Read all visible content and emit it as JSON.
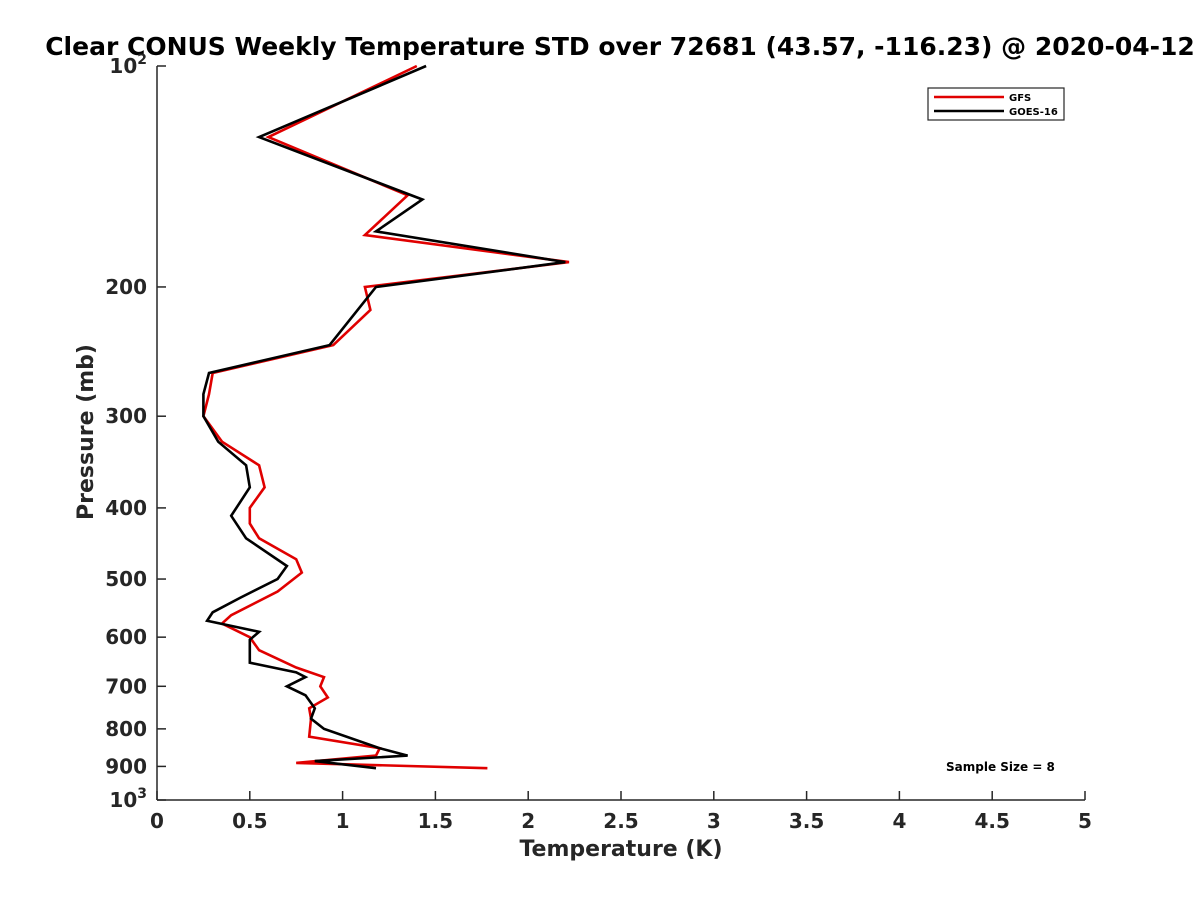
{
  "chart_data": {
    "type": "line",
    "title": "Clear CONUS Weekly Temperature STD over 72681 (43.57, -116.23) @ 2020-04-12",
    "xlabel": "Temperature (K)",
    "ylabel": "Pressure (mb)",
    "xlim": [
      0,
      5
    ],
    "ylim": [
      100,
      1000
    ],
    "yscale": "log",
    "y_reversed": true,
    "x_ticks": [
      "0",
      "0.5",
      "1",
      "1.5",
      "2",
      "2.5",
      "3",
      "3.5",
      "4",
      "4.5",
      "5"
    ],
    "y_ticks": [
      {
        "value": 100,
        "label": "10",
        "sup": "2"
      },
      {
        "value": 200,
        "label": "200",
        "sup": ""
      },
      {
        "value": 300,
        "label": "300",
        "sup": ""
      },
      {
        "value": 400,
        "label": "400",
        "sup": ""
      },
      {
        "value": 500,
        "label": "500",
        "sup": ""
      },
      {
        "value": 600,
        "label": "600",
        "sup": ""
      },
      {
        "value": 700,
        "label": "700",
        "sup": ""
      },
      {
        "value": 800,
        "label": "800",
        "sup": ""
      },
      {
        "value": 900,
        "label": "900",
        "sup": ""
      },
      {
        "value": 1000,
        "label": "10",
        "sup": "3"
      }
    ],
    "legend_position": "top-right",
    "annotation": "Sample Size = 8",
    "grid": false,
    "series": [
      {
        "name": "GFS",
        "color": "#e00000",
        "points": [
          [
            1.4,
            100
          ],
          [
            0.6,
            125
          ],
          [
            1.35,
            150
          ],
          [
            1.12,
            170
          ],
          [
            2.22,
            185
          ],
          [
            1.12,
            200
          ],
          [
            1.15,
            215
          ],
          [
            0.95,
            240
          ],
          [
            0.3,
            262
          ],
          [
            0.28,
            280
          ],
          [
            0.25,
            300
          ],
          [
            0.35,
            325
          ],
          [
            0.55,
            350
          ],
          [
            0.58,
            375
          ],
          [
            0.5,
            400
          ],
          [
            0.5,
            420
          ],
          [
            0.55,
            440
          ],
          [
            0.75,
            470
          ],
          [
            0.78,
            490
          ],
          [
            0.65,
            520
          ],
          [
            0.4,
            560
          ],
          [
            0.35,
            575
          ],
          [
            0.5,
            600
          ],
          [
            0.55,
            625
          ],
          [
            0.75,
            660
          ],
          [
            0.9,
            680
          ],
          [
            0.88,
            700
          ],
          [
            0.92,
            725
          ],
          [
            0.82,
            750
          ],
          [
            0.83,
            775
          ],
          [
            0.82,
            820
          ],
          [
            1.2,
            850
          ],
          [
            1.18,
            870
          ],
          [
            0.75,
            890
          ],
          [
            1.78,
            905
          ]
        ]
      },
      {
        "name": "GOES-16",
        "color": "#000000",
        "points": [
          [
            1.45,
            100
          ],
          [
            0.55,
            125
          ],
          [
            1.43,
            152
          ],
          [
            1.18,
            168
          ],
          [
            2.2,
            185
          ],
          [
            1.18,
            200
          ],
          [
            0.93,
            240
          ],
          [
            0.28,
            262
          ],
          [
            0.25,
            280
          ],
          [
            0.25,
            300
          ],
          [
            0.33,
            325
          ],
          [
            0.48,
            350
          ],
          [
            0.5,
            375
          ],
          [
            0.4,
            410
          ],
          [
            0.48,
            440
          ],
          [
            0.7,
            480
          ],
          [
            0.65,
            500
          ],
          [
            0.45,
            530
          ],
          [
            0.3,
            555
          ],
          [
            0.27,
            570
          ],
          [
            0.55,
            590
          ],
          [
            0.5,
            605
          ],
          [
            0.5,
            650
          ],
          [
            0.75,
            670
          ],
          [
            0.8,
            680
          ],
          [
            0.7,
            700
          ],
          [
            0.8,
            720
          ],
          [
            0.85,
            750
          ],
          [
            0.83,
            775
          ],
          [
            0.9,
            800
          ],
          [
            1.2,
            850
          ],
          [
            1.35,
            870
          ],
          [
            0.85,
            885
          ],
          [
            1.18,
            905
          ]
        ]
      }
    ]
  }
}
